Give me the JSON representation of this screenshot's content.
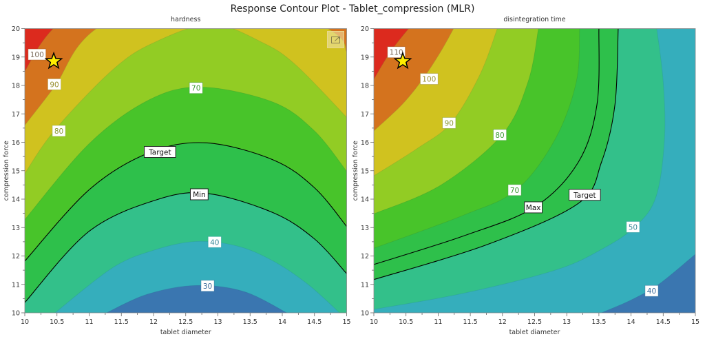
{
  "title": "Response Contour Plot - Tablet_compression (MLR)",
  "chart_data": [
    {
      "type": "contour",
      "title": "hardness",
      "xlabel": "tablet diameter",
      "ylabel": "compression force",
      "xlim": [
        10,
        15
      ],
      "ylim": [
        10,
        20
      ],
      "xticks": [
        "10",
        "10.5",
        "11",
        "11.5",
        "12",
        "12.5",
        "13",
        "13.5",
        "14",
        "14.5",
        "15"
      ],
      "yticks": [
        "10",
        "11",
        "12",
        "13",
        "14",
        "15",
        "16",
        "17",
        "18",
        "19",
        "20"
      ],
      "base_color": "#3a76b0",
      "optimum": [
        10.45,
        18.85
      ],
      "has_export_icon": true,
      "contours": [
        {
          "label": "30",
          "fill": "#35aebc",
          "line": "#2f6f9a",
          "text_color": "#3a6a9a",
          "label_at": [
            12.84,
            10.95
          ],
          "points": [
            [
              11.27,
              10
            ],
            [
              11.9,
              10.65
            ],
            [
              12.65,
              10.96
            ],
            [
              13.4,
              10.75
            ],
            [
              14.07,
              10
            ]
          ]
        },
        {
          "label": "40",
          "fill": "#33c08a",
          "line": "#2a9a9a",
          "text_color": "#3a8a9a",
          "label_at": [
            12.95,
            12.49
          ],
          "points": [
            [
              10.47,
              10
            ],
            [
              11.36,
              11.58
            ],
            [
              12.0,
              12.2
            ],
            [
              12.65,
              12.51
            ],
            [
              13.3,
              12.35
            ],
            [
              13.86,
              11.82
            ],
            [
              14.4,
              11.0
            ],
            [
              14.89,
              10
            ]
          ]
        },
        {
          "label": "Min",
          "fill": "#2ec04b",
          "line": "#000000",
          "text_color": "#111111",
          "label_at": [
            12.71,
            14.17
          ],
          "points": [
            [
              10,
              10.36
            ],
            [
              11.0,
              12.87
            ],
            [
              12.08,
              14.0
            ],
            [
              12.86,
              14.19
            ],
            [
              13.86,
              13.52
            ],
            [
              14.5,
              12.6
            ],
            [
              15,
              11.38
            ]
          ]
        },
        {
          "label": "Target",
          "fill": "#48c42a",
          "line": "#000000",
          "text_color": "#111111",
          "label_at": [
            12.1,
            15.66
          ],
          "points": [
            [
              10,
              11.82
            ],
            [
              11.0,
              14.33
            ],
            [
              11.93,
              15.63
            ],
            [
              12.82,
              15.98
            ],
            [
              13.86,
              15.38
            ],
            [
              14.5,
              14.4
            ],
            [
              15,
              13.04
            ]
          ]
        },
        {
          "label": "70",
          "fill": "#92cc24",
          "line": "#3a9a30",
          "text_color": "#3a9a30",
          "label_at": [
            12.66,
            17.91
          ],
          "points": [
            [
              10,
              13.28
            ],
            [
              11.0,
              15.95
            ],
            [
              11.93,
              17.49
            ],
            [
              12.75,
              17.94
            ],
            [
              13.86,
              17.41
            ],
            [
              14.5,
              16.4
            ],
            [
              15,
              14.98
            ]
          ]
        },
        {
          "label": "80",
          "fill": "#d0c21f",
          "line": "#8aa030",
          "text_color": "#8a9a30",
          "label_at": [
            10.53,
            16.4
          ],
          "points": [
            [
              10,
              14.9
            ],
            [
              10.47,
              16.44
            ],
            [
              11.36,
              18.54
            ],
            [
              12.0,
              19.5
            ],
            [
              12.9,
              20.15
            ],
            [
              13.7,
              19.5
            ],
            [
              14.22,
              18.7
            ],
            [
              15,
              16.88
            ]
          ]
        },
        {
          "label": "90",
          "fill": "#d4731e",
          "line": "#a09030",
          "text_color": "#9a9030",
          "label_at": [
            10.46,
            18.04
          ],
          "points": [
            [
              10,
              16.6
            ],
            [
              10.47,
              17.98
            ],
            [
              11.11,
              20
            ],
            [
              12.9,
              22
            ],
            [
              14.71,
              20
            ],
            [
              15,
              19.19
            ]
          ]
        },
        {
          "label": "100",
          "fill": "#dc2a1e",
          "line": "#a05a2a",
          "text_color": "#7a6a5a",
          "label_at": [
            10.19,
            19.09
          ],
          "points": [
            [
              10,
              18.5
            ],
            [
              10.44,
              20
            ],
            [
              11.5,
              22
            ],
            [
              12.9,
              24
            ],
            [
              15,
              23
            ]
          ]
        }
      ]
    },
    {
      "type": "contour",
      "title": "disintegration time",
      "xlabel": "tablet diameter",
      "ylabel": "compression force",
      "xlim": [
        10,
        15
      ],
      "ylim": [
        10,
        20
      ],
      "xticks": [
        "10",
        "10.5",
        "11",
        "11.5",
        "12",
        "12.5",
        "13",
        "13.5",
        "14",
        "14.5",
        "15"
      ],
      "yticks": [
        "10",
        "11",
        "12",
        "13",
        "14",
        "15",
        "16",
        "17",
        "18",
        "19",
        "20"
      ],
      "base_color": "#3a76b0",
      "optimum": [
        10.45,
        18.85
      ],
      "contours": [
        {
          "label": "40",
          "fill": "#35aebc",
          "line": "#2f6f9a",
          "text_color": "#3a6a9a",
          "label_at": [
            14.32,
            10.77
          ],
          "points": [
            [
              13.54,
              10
            ],
            [
              14.0,
              10.45
            ],
            [
              14.43,
              11.0
            ],
            [
              15,
              12.06
            ]
          ]
        },
        {
          "label": "50",
          "fill": "#33c08a",
          "line": "#2a9a9a",
          "text_color": "#3a8a9a",
          "label_at": [
            14.03,
            13.02
          ],
          "points": [
            [
              10,
              10.12
            ],
            [
              11.4,
              10.69
            ],
            [
              12.82,
              11.5
            ],
            [
              13.54,
              12.23
            ],
            [
              14.07,
              13.04
            ],
            [
              14.39,
              14.09
            ],
            [
              14.52,
              16.11
            ],
            [
              14.5,
              18.14
            ],
            [
              14.4,
              20
            ]
          ]
        },
        {
          "label": "Target",
          "fill": "#2ec04b",
          "line": "#000000",
          "text_color": "#111111",
          "label_at": [
            13.28,
            14.15
          ],
          "points": [
            [
              10,
              11.17
            ],
            [
              11.75,
              12.39
            ],
            [
              13.18,
              13.85
            ],
            [
              13.54,
              15.3
            ],
            [
              13.75,
              17.33
            ],
            [
              13.8,
              20
            ]
          ]
        },
        {
          "label": "Max",
          "fill": "#30c048",
          "line": "#000000",
          "text_color": "#111111",
          "label_at": [
            12.48,
            13.71
          ],
          "points": [
            [
              10,
              11.7
            ],
            [
              11.4,
              12.71
            ],
            [
              12.5,
              13.72
            ],
            [
              13.18,
              15.3
            ],
            [
              13.47,
              17.33
            ],
            [
              13.5,
              20
            ]
          ]
        },
        {
          "label": "70",
          "fill": "#48c42a",
          "line": "#3a9a30",
          "text_color": "#3a9a30",
          "label_at": [
            12.19,
            14.32
          ],
          "points": [
            [
              10,
              12.27
            ],
            [
              11.4,
              13.44
            ],
            [
              12.22,
              14.33
            ],
            [
              12.82,
              16.11
            ],
            [
              13.15,
              18.14
            ],
            [
              13.2,
              20
            ]
          ]
        },
        {
          "label": "80",
          "fill": "#92cc24",
          "line": "#3a9a30",
          "text_color": "#3a9a30",
          "label_at": [
            11.96,
            16.26
          ],
          "points": [
            [
              10,
              13.48
            ],
            [
              11.04,
              14.49
            ],
            [
              12.0,
              16.28
            ],
            [
              12.4,
              18.14
            ],
            [
              12.56,
              20
            ]
          ]
        },
        {
          "label": "90",
          "fill": "#d0c21f",
          "line": "#8aa030",
          "text_color": "#8a9a30",
          "label_at": [
            11.17,
            16.68
          ],
          "points": [
            [
              10,
              14.82
            ],
            [
              10.68,
              15.79
            ],
            [
              11.2,
              16.68
            ],
            [
              11.65,
              18.38
            ],
            [
              11.92,
              20
            ]
          ]
        },
        {
          "label": "100",
          "fill": "#d4731e",
          "line": "#a09030",
          "text_color": "#9a9030",
          "label_at": [
            10.86,
            18.23
          ],
          "points": [
            [
              10,
              16.4
            ],
            [
              10.44,
              17.33
            ],
            [
              10.76,
              18.22
            ],
            [
              11.04,
              19.19
            ],
            [
              11.24,
              20
            ]
          ]
        },
        {
          "label": "110",
          "fill": "#dc2a1e",
          "line": "#a05a2a",
          "text_color": "#7a6a5a",
          "label_at": [
            10.35,
            19.17
          ],
          "points": [
            [
              10,
              18.22
            ],
            [
              10.26,
              19.19
            ],
            [
              10.54,
              20
            ]
          ]
        }
      ]
    }
  ]
}
